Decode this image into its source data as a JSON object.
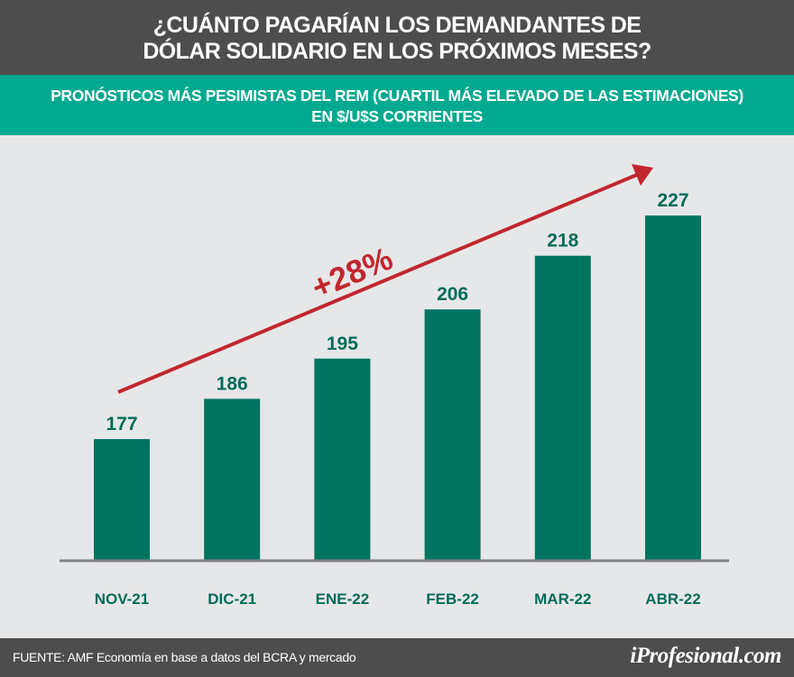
{
  "header": {
    "title_line1": "¿CUÁNTO PAGARÍAN LOS DEMANDANTES DE",
    "title_line2": "DÓLAR SOLIDARIO EN LOS PRÓXIMOS MESES?",
    "subtitle_line1": "PRONÓSTICOS MÁS PESIMISTAS DEL REM (CUARTIL MÁS ELEVADO DE LAS ESTIMACIONES)",
    "subtitle_line2": "EN $/U$S CORRIENTES"
  },
  "chart_data": {
    "type": "bar",
    "categories": [
      "NOV-21",
      "DIC-21",
      "ENE-22",
      "FEB-22",
      "MAR-22",
      "ABR-22"
    ],
    "values": [
      177,
      186,
      195,
      206,
      218,
      227
    ],
    "ylim": [
      150,
      240
    ],
    "grid": false,
    "annotation": "+28%",
    "colors": {
      "bar": "#007461",
      "label": "#006c58",
      "arrow": "#c1272d",
      "axis": "#808285"
    }
  },
  "footer": {
    "source": "FUENTE: AMF Economía en base a datos del BCRA y mercado",
    "logo": "iProfesional.com"
  }
}
